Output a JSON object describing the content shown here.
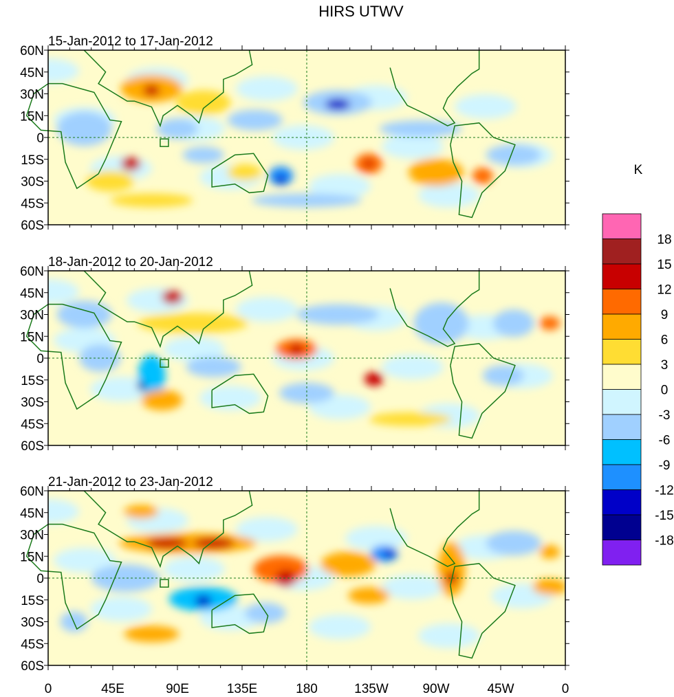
{
  "title": "HIRS UTWV",
  "units": "K",
  "panels": [
    {
      "label": "15-Jan-2012 to 17-Jan-2012"
    },
    {
      "label": "18-Jan-2012 to 20-Jan-2012"
    },
    {
      "label": "21-Jan-2012 to 23-Jan-2012"
    }
  ],
  "lat_ticks": [
    "60N",
    "45N",
    "30N",
    "15N",
    "0",
    "15S",
    "30S",
    "45S",
    "60S"
  ],
  "lon_ticks": [
    "0",
    "45E",
    "90E",
    "135E",
    "180",
    "135W",
    "90W",
    "45W",
    "0"
  ],
  "colorbar": {
    "labels": [
      "18",
      "15",
      "12",
      "9",
      "6",
      "3",
      "0",
      "-3",
      "-6",
      "-9",
      "-12",
      "-15",
      "-18"
    ],
    "colors": [
      "#ff66b3",
      "#a02020",
      "#c80000",
      "#ff6a00",
      "#ffaa00",
      "#ffdd33",
      "#fffccc",
      "#d0f5ff",
      "#a0d0ff",
      "#00c0ff",
      "#1e90ff",
      "#0000c8",
      "#000090",
      "#8020f0"
    ]
  },
  "chart_data": {
    "type": "heatmap",
    "title": "HIRS UTWV",
    "colorbar_units": "K",
    "levels": [
      -18,
      -15,
      -12,
      -9,
      -6,
      -3,
      0,
      3,
      6,
      9,
      12,
      15,
      18
    ],
    "lat_range": [
      -60,
      60
    ],
    "lon_range": [
      0,
      360
    ],
    "panels": [
      "15-Jan-2012 to 17-Jan-2012",
      "18-Jan-2012 to 20-Jan-2012",
      "21-Jan-2012 to 23-Jan-2012"
    ]
  },
  "colors": {
    "coast": "#1a7a1a"
  }
}
